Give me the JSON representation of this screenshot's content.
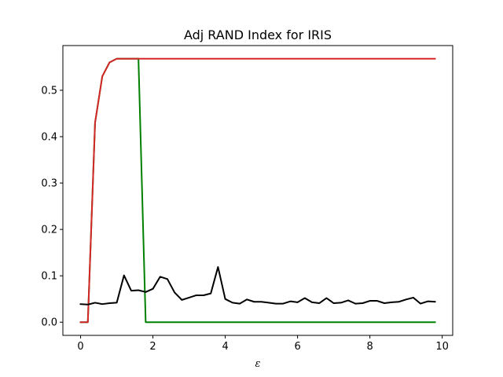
{
  "chart_data": {
    "type": "line",
    "title": "Adj RAND Index for IRIS",
    "xlabel": "ε",
    "ylabel": "",
    "xlim": [
      -0.49,
      10.29
    ],
    "ylim": [
      -0.0284,
      0.5964
    ],
    "xticks": [
      0,
      2,
      4,
      6,
      8,
      10
    ],
    "yticks": [
      0.0,
      0.1,
      0.2,
      0.3,
      0.4,
      0.5
    ],
    "ytick_labels": [
      "0.0",
      "0.1",
      "0.2",
      "0.3",
      "0.4",
      "0.5"
    ],
    "grid": false,
    "x": [
      0.0,
      0.2,
      0.4,
      0.6,
      0.8,
      1.0,
      1.2,
      1.4,
      1.6,
      1.8,
      2.0,
      2.2,
      2.4,
      2.6,
      2.8,
      3.0,
      3.2,
      3.4,
      3.6,
      3.8,
      4.0,
      4.2,
      4.4,
      4.6,
      4.8,
      5.0,
      5.2,
      5.4,
      5.6,
      5.8,
      6.0,
      6.2,
      6.4,
      6.6,
      6.8,
      7.0,
      7.2,
      7.4,
      7.6,
      7.8,
      8.0,
      8.2,
      8.4,
      8.6,
      8.8,
      9.0,
      9.2,
      9.4,
      9.6,
      9.8
    ],
    "series": [
      {
        "color": "#008000",
        "values": [
          0.0,
          0.0,
          0.43,
          0.53,
          0.56,
          0.568,
          0.568,
          0.568,
          0.568,
          0.0,
          0.0,
          0.0,
          0.0,
          0.0,
          0.0,
          0.0,
          0.0,
          0.0,
          0.0,
          0.0,
          0.0,
          0.0,
          0.0,
          0.0,
          0.0,
          0.0,
          0.0,
          0.0,
          0.0,
          0.0,
          0.0,
          0.0,
          0.0,
          0.0,
          0.0,
          0.0,
          0.0,
          0.0,
          0.0,
          0.0,
          0.0,
          0.0,
          0.0,
          0.0,
          0.0,
          0.0,
          0.0,
          0.0,
          0.0,
          0.0
        ]
      },
      {
        "color": "#d62728",
        "values": [
          0.0,
          0.0,
          0.43,
          0.53,
          0.56,
          0.568,
          0.568,
          0.568,
          0.568,
          0.568,
          0.568,
          0.568,
          0.568,
          0.568,
          0.568,
          0.568,
          0.568,
          0.568,
          0.568,
          0.568,
          0.568,
          0.568,
          0.568,
          0.568,
          0.568,
          0.568,
          0.568,
          0.568,
          0.568,
          0.568,
          0.568,
          0.568,
          0.568,
          0.568,
          0.568,
          0.568,
          0.568,
          0.568,
          0.568,
          0.568,
          0.568,
          0.568,
          0.568,
          0.568,
          0.568,
          0.568,
          0.568,
          0.568,
          0.568,
          0.568
        ]
      },
      {
        "color": "#000000",
        "values": [
          0.039,
          0.038,
          0.042,
          0.039,
          0.041,
          0.042,
          0.101,
          0.068,
          0.069,
          0.065,
          0.072,
          0.098,
          0.093,
          0.064,
          0.048,
          0.053,
          0.058,
          0.058,
          0.062,
          0.119,
          0.05,
          0.042,
          0.04,
          0.049,
          0.044,
          0.044,
          0.042,
          0.04,
          0.04,
          0.045,
          0.043,
          0.052,
          0.043,
          0.041,
          0.052,
          0.041,
          0.042,
          0.047,
          0.04,
          0.041,
          0.046,
          0.046,
          0.041,
          0.043,
          0.044,
          0.049,
          0.053,
          0.04,
          0.045,
          0.044
        ]
      }
    ]
  }
}
